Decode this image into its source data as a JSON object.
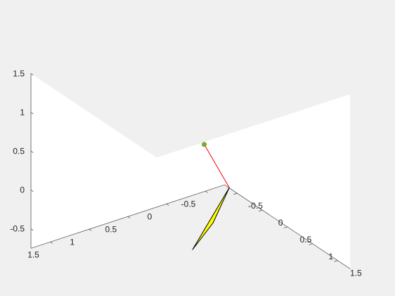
{
  "chart_data": {
    "type": "3d-plot",
    "view": "isometric",
    "background_color": "#f0f0f0",
    "axes_face_color": "#ffffff",
    "axis_color": "#262626",
    "xlim": [
      -0.75,
      1.75
    ],
    "ylim": [
      -0.75,
      1.75
    ],
    "zlim": [
      -0.75,
      1.5
    ],
    "x_ticks": [
      "-0.5",
      "0",
      "0.5",
      "1",
      "1.5"
    ],
    "y_ticks": [
      "-0.5",
      "0",
      "0.5",
      "1",
      "1.5"
    ],
    "z_ticks": [
      "-0.5",
      "0",
      "0.5",
      "1",
      "1.5"
    ],
    "objects": [
      {
        "kind": "patch",
        "name": "triangle",
        "fill_color": "#ffff00",
        "edge_color": "#000000",
        "vertices": [
          [
            0.5,
            0.0,
            0.0
          ],
          [
            1.1,
            0.6,
            0.0
          ],
          [
            1.0,
            0.8,
            -0.32
          ]
        ]
      },
      {
        "kind": "line",
        "name": "red-segment",
        "color": "#ff0000",
        "points": [
          [
            0.0,
            0.0,
            0.34
          ],
          [
            0.5,
            0.0,
            0.0
          ]
        ]
      },
      {
        "kind": "marker",
        "name": "green-point",
        "color": "#77ac30",
        "point": [
          0.0,
          0.0,
          0.34
        ]
      }
    ]
  }
}
